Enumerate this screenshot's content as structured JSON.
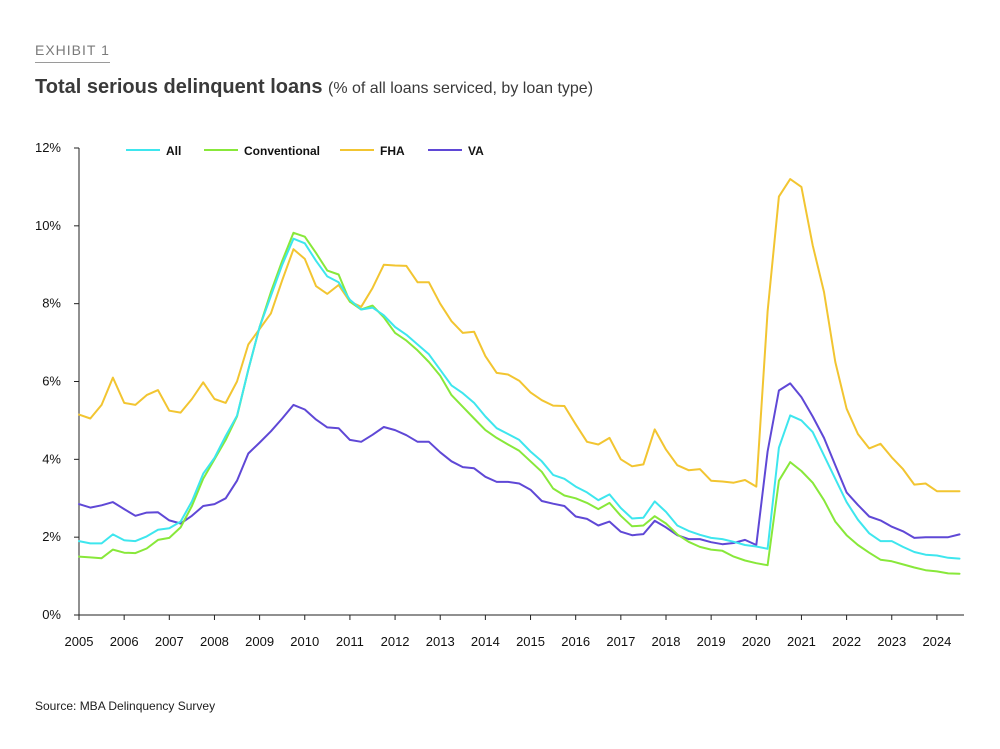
{
  "header": {
    "exhibit": "EXHIBIT 1",
    "title": "Total serious delinquent loans",
    "subtitle": "(% of all loans serviced, by loan type)"
  },
  "source": "Source: MBA Delinquency Survey",
  "chart_data": {
    "type": "line",
    "title": "Total serious delinquent loans",
    "subtitle": "(% of all loans serviced, by loan type)",
    "xlabel": "",
    "ylabel": "",
    "xlim": [
      2005,
      2024.6
    ],
    "ylim": [
      0,
      12
    ],
    "x_ticks": [
      "2005",
      "2006",
      "2007",
      "2008",
      "2009",
      "2010",
      "2011",
      "2012",
      "2013",
      "2014",
      "2015",
      "2016",
      "2017",
      "2018",
      "2019",
      "2020",
      "2021",
      "2022",
      "2023",
      "2024"
    ],
    "y_ticks": [
      "0%",
      "2%",
      "4%",
      "6%",
      "8%",
      "10%",
      "12%"
    ],
    "grid": false,
    "legend_position": "top-left",
    "x": [
      2005.0,
      2005.25,
      2005.5,
      2005.75,
      2006.0,
      2006.25,
      2006.5,
      2006.75,
      2007.0,
      2007.25,
      2007.5,
      2007.75,
      2008.0,
      2008.25,
      2008.5,
      2008.75,
      2009.0,
      2009.25,
      2009.5,
      2009.75,
      2010.0,
      2010.25,
      2010.5,
      2010.75,
      2011.0,
      2011.25,
      2011.5,
      2011.75,
      2012.0,
      2012.25,
      2012.5,
      2012.75,
      2013.0,
      2013.25,
      2013.5,
      2013.75,
      2014.0,
      2014.25,
      2014.5,
      2014.75,
      2015.0,
      2015.25,
      2015.5,
      2015.75,
      2016.0,
      2016.25,
      2016.5,
      2016.75,
      2017.0,
      2017.25,
      2017.5,
      2017.75,
      2018.0,
      2018.25,
      2018.5,
      2018.75,
      2019.0,
      2019.25,
      2019.5,
      2019.75,
      2020.0,
      2020.25,
      2020.5,
      2020.75,
      2021.0,
      2021.25,
      2021.5,
      2021.75,
      2022.0,
      2022.25,
      2022.5,
      2022.75,
      2023.0,
      2023.25,
      2023.5,
      2023.75,
      2024.0,
      2024.25,
      2024.5
    ],
    "series": [
      {
        "name": "All",
        "color": "#3ee6ee",
        "values": [
          1.9,
          1.84,
          1.84,
          2.07,
          1.92,
          1.9,
          2.02,
          2.19,
          2.23,
          2.4,
          2.92,
          3.63,
          4.04,
          4.6,
          5.12,
          6.3,
          7.4,
          8.2,
          9.0,
          9.67,
          9.55,
          9.1,
          8.7,
          8.55,
          8.1,
          7.85,
          7.9,
          7.7,
          7.4,
          7.2,
          6.95,
          6.7,
          6.3,
          5.9,
          5.7,
          5.45,
          5.1,
          4.8,
          4.65,
          4.5,
          4.2,
          3.95,
          3.6,
          3.5,
          3.3,
          3.15,
          2.95,
          3.1,
          2.75,
          2.48,
          2.5,
          2.92,
          2.65,
          2.3,
          2.16,
          2.06,
          1.98,
          1.95,
          1.88,
          1.8,
          1.76,
          1.7,
          4.3,
          5.13,
          5.0,
          4.7,
          4.1,
          3.5,
          2.9,
          2.45,
          2.1,
          1.9,
          1.9,
          1.75,
          1.62,
          1.55,
          1.53,
          1.47,
          1.45
        ]
      },
      {
        "name": "Conventional",
        "color": "#88e83a",
        "values": [
          1.5,
          1.48,
          1.46,
          1.68,
          1.6,
          1.59,
          1.71,
          1.93,
          1.98,
          2.25,
          2.8,
          3.5,
          4.0,
          4.5,
          5.1,
          6.3,
          7.4,
          8.3,
          9.1,
          9.82,
          9.72,
          9.3,
          8.85,
          8.75,
          8.05,
          7.85,
          7.95,
          7.65,
          7.25,
          7.05,
          6.8,
          6.5,
          6.15,
          5.65,
          5.35,
          5.05,
          4.75,
          4.55,
          4.38,
          4.22,
          3.95,
          3.68,
          3.25,
          3.07,
          3.0,
          2.88,
          2.72,
          2.88,
          2.55,
          2.28,
          2.3,
          2.54,
          2.35,
          2.07,
          1.88,
          1.75,
          1.68,
          1.65,
          1.5,
          1.4,
          1.33,
          1.28,
          3.45,
          3.93,
          3.7,
          3.4,
          2.95,
          2.4,
          2.05,
          1.8,
          1.6,
          1.42,
          1.38,
          1.3,
          1.22,
          1.15,
          1.12,
          1.07,
          1.06
        ]
      },
      {
        "name": "FHA",
        "color": "#f2c531",
        "values": [
          5.15,
          5.05,
          5.4,
          6.1,
          5.45,
          5.4,
          5.65,
          5.78,
          5.25,
          5.2,
          5.55,
          5.98,
          5.55,
          5.45,
          6.0,
          6.95,
          7.35,
          7.75,
          8.6,
          9.4,
          9.15,
          8.45,
          8.25,
          8.48,
          8.05,
          7.92,
          8.4,
          9.0,
          8.98,
          8.97,
          8.55,
          8.55,
          8.0,
          7.55,
          7.25,
          7.28,
          6.65,
          6.22,
          6.18,
          6.02,
          5.72,
          5.52,
          5.38,
          5.37,
          4.9,
          4.45,
          4.38,
          4.55,
          4.0,
          3.82,
          3.87,
          4.77,
          4.25,
          3.85,
          3.72,
          3.75,
          3.45,
          3.43,
          3.4,
          3.47,
          3.3,
          7.8,
          10.75,
          11.2,
          11.0,
          9.5,
          8.3,
          6.5,
          5.3,
          4.65,
          4.28,
          4.4,
          4.05,
          3.75,
          3.35,
          3.38,
          3.18,
          3.18,
          3.18
        ]
      },
      {
        "name": "VA",
        "color": "#5f48d6",
        "values": [
          2.85,
          2.76,
          2.82,
          2.9,
          2.72,
          2.55,
          2.63,
          2.64,
          2.43,
          2.35,
          2.55,
          2.8,
          2.85,
          3.0,
          3.45,
          4.15,
          4.43,
          4.72,
          5.05,
          5.4,
          5.28,
          5.02,
          4.82,
          4.8,
          4.5,
          4.45,
          4.63,
          4.83,
          4.75,
          4.62,
          4.45,
          4.45,
          4.18,
          3.95,
          3.8,
          3.77,
          3.55,
          3.42,
          3.42,
          3.38,
          3.22,
          2.93,
          2.86,
          2.8,
          2.53,
          2.47,
          2.3,
          2.4,
          2.14,
          2.05,
          2.08,
          2.42,
          2.25,
          2.05,
          1.95,
          1.95,
          1.87,
          1.82,
          1.85,
          1.93,
          1.8,
          4.2,
          5.77,
          5.95,
          5.6,
          5.1,
          4.55,
          3.85,
          3.15,
          2.83,
          2.53,
          2.43,
          2.27,
          2.15,
          1.98,
          2.0,
          2.0,
          2.0,
          2.07
        ]
      }
    ]
  }
}
